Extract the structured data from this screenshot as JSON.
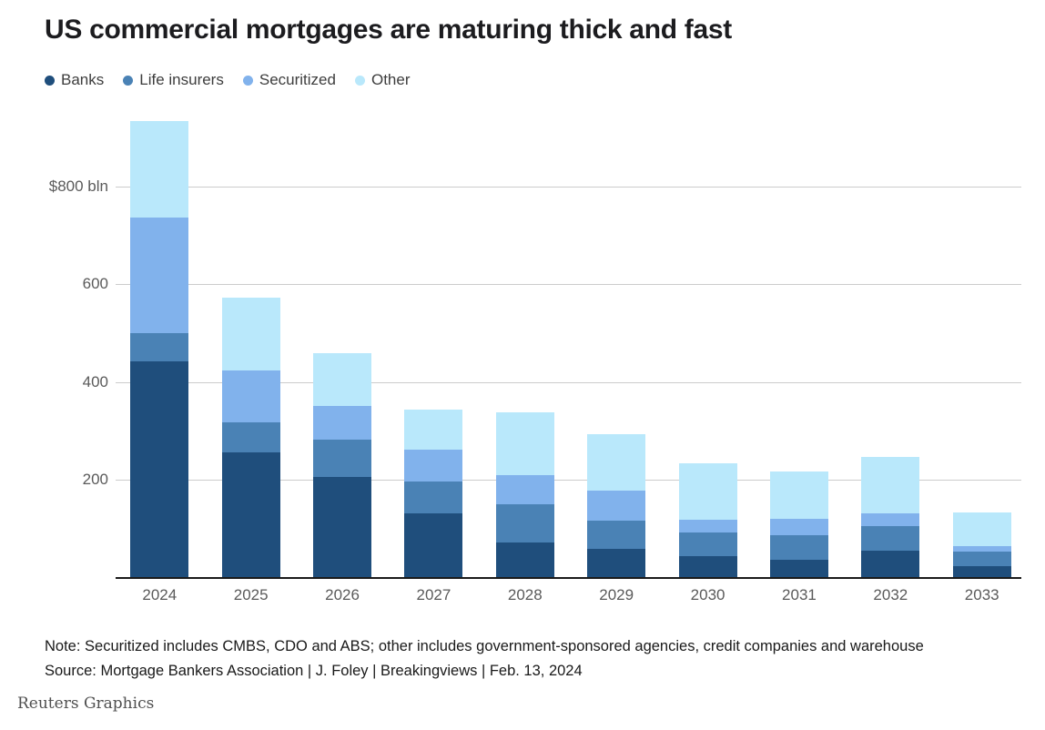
{
  "title": "US commercial mortgages are maturing thick and fast",
  "chart_data": {
    "type": "bar",
    "stacked": true,
    "categories": [
      "2024",
      "2025",
      "2026",
      "2027",
      "2028",
      "2029",
      "2030",
      "2031",
      "2032",
      "2033"
    ],
    "series": [
      {
        "name": "Banks",
        "color": "#1f4e7c",
        "values": [
          443,
          255,
          205,
          130,
          70,
          58,
          42,
          36,
          55,
          22
        ]
      },
      {
        "name": "Life insurers",
        "color": "#4a82b5",
        "values": [
          57,
          63,
          76,
          66,
          80,
          57,
          50,
          50,
          50,
          30
        ]
      },
      {
        "name": "Securitized",
        "color": "#81b2ec",
        "values": [
          237,
          106,
          69,
          66,
          59,
          63,
          25,
          33,
          25,
          12
        ]
      },
      {
        "name": "Other",
        "color": "#b9e8fb",
        "values": [
          198,
          148,
          109,
          81,
          128,
          114,
          116,
          97,
          116,
          68
        ]
      }
    ],
    "totals": [
      935,
      572,
      459,
      343,
      337,
      292,
      233,
      216,
      246,
      132
    ],
    "y_ticks": [
      {
        "value": 200,
        "label": "200"
      },
      {
        "value": 400,
        "label": "400"
      },
      {
        "value": 600,
        "label": "600"
      },
      {
        "value": 800,
        "label": "$800 bln"
      }
    ],
    "ylim": [
      0,
      950
    ],
    "unit": "$ bln",
    "grid": true,
    "legend_position": "top-left"
  },
  "footer": {
    "note": "Note: Securitized includes CMBS, CDO and ABS; other includes government-sponsored agencies, credit companies and warehouse",
    "source": "Source: Mortgage Bankers Association | J. Foley | Breakingviews | Feb. 13, 2024",
    "credit": "Reuters Graphics"
  }
}
